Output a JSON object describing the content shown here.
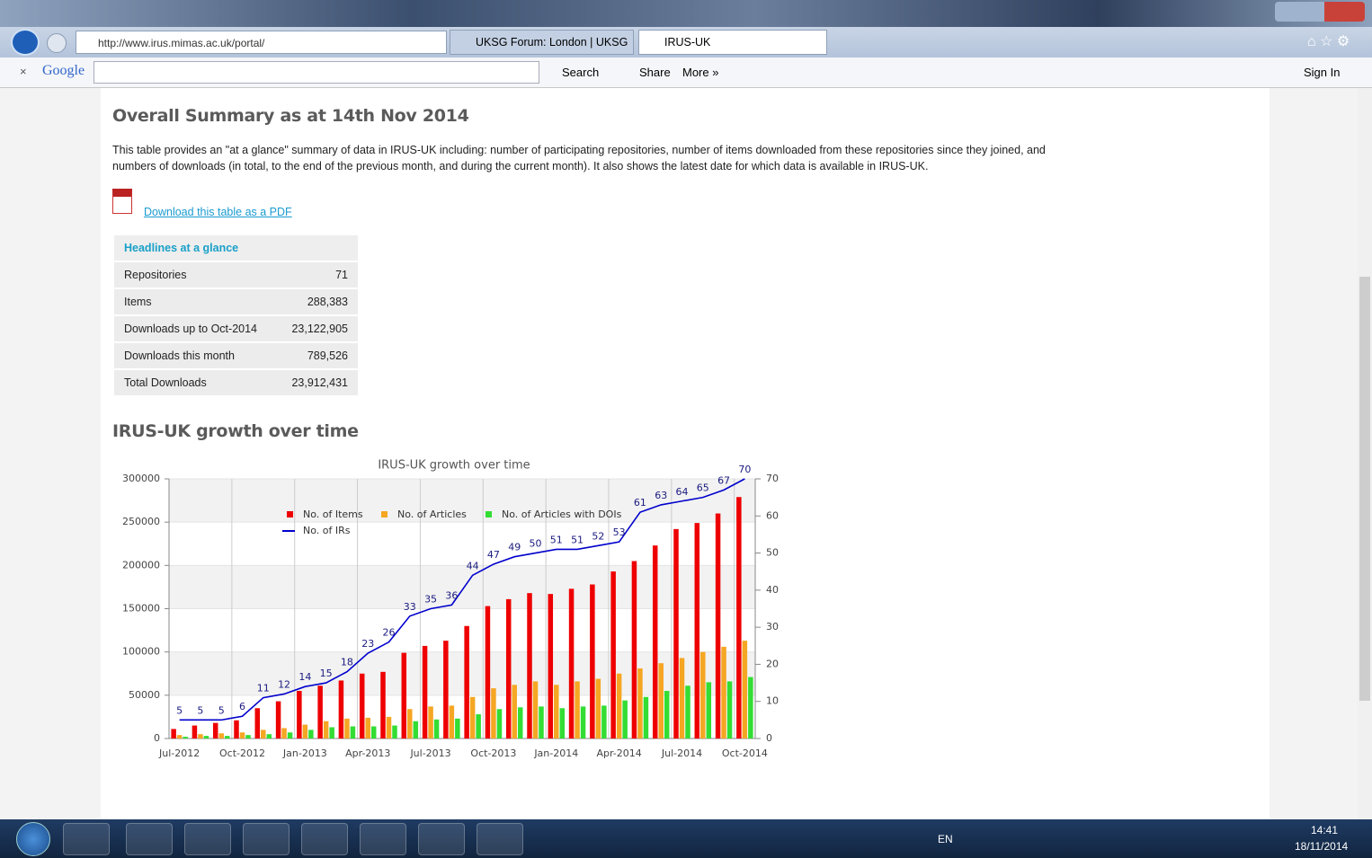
{
  "browser": {
    "address": "http://www.irus.mimas.ac.uk/portal/",
    "tabs": [
      "UKSG Forum: London | UKSG",
      "IRUS-UK"
    ],
    "toolbar": {
      "brand": "Google",
      "search": "Search",
      "share": "Share",
      "more": "More »",
      "sign_in": "Sign In"
    }
  },
  "page": {
    "heading": "Overall Summary as at 14th Nov 2014",
    "intro": [
      "This table provides an \"at a glance\" summary of data in IRUS-UK including: number of participating repositories, number of items downloaded from these repositories since they joined, and",
      "numbers of downloads (in total, to the end of the previous month, and during the current month). It also shows the latest date for which data is available in IRUS-UK."
    ],
    "pdf_link": "Download this table as a PDF",
    "table": {
      "header": "Headlines at a glance",
      "rows": [
        [
          "Repositories",
          "71"
        ],
        [
          "Items",
          "288,383"
        ],
        [
          "Downloads up to Oct-2014",
          "23,122,905"
        ],
        [
          "Downloads this month",
          "789,526"
        ],
        [
          "Total Downloads",
          "23,912,431"
        ]
      ]
    },
    "chart_heading": "IRUS-UK growth over time"
  },
  "chart_data": {
    "type": "bar",
    "title": "IRUS-UK growth over time",
    "categories": [
      "Jul-2012",
      null,
      null,
      "Oct-2012",
      null,
      null,
      "Jan-2013",
      null,
      null,
      "Apr-2013",
      null,
      null,
      "Jul-2013",
      null,
      null,
      "Oct-2013",
      null,
      null,
      "Jan-2014",
      null,
      null,
      "Apr-2014",
      null,
      null,
      "Jul-2014",
      null,
      null,
      "Oct-2014"
    ],
    "series": [
      {
        "name": "No. of Items",
        "color": "#ee0000",
        "values": [
          11000,
          15000,
          18000,
          21000,
          35000,
          43000,
          55000,
          61000,
          67000,
          75000,
          77000,
          99000,
          107000,
          113000,
          130000,
          153000,
          161000,
          168000,
          167000,
          173000,
          178000,
          193000,
          205000,
          223000,
          242000,
          249000,
          260000,
          279000
        ]
      },
      {
        "name": "No. of Articles",
        "color": "#f5a623",
        "values": [
          4000,
          5000,
          6000,
          7000,
          10000,
          12000,
          16000,
          20000,
          23000,
          24000,
          25000,
          34000,
          37000,
          38000,
          48000,
          58000,
          62000,
          66000,
          62000,
          66000,
          69000,
          75000,
          81000,
          87000,
          93000,
          100000,
          106000,
          113000
        ]
      },
      {
        "name": "No. of Articles with DOIs",
        "color": "#33dd33",
        "values": [
          2000,
          3000,
          3000,
          4000,
          5000,
          7000,
          10000,
          13000,
          14000,
          14000,
          15000,
          20000,
          22000,
          23000,
          28000,
          34000,
          36000,
          37000,
          35000,
          37000,
          38000,
          44000,
          48000,
          55000,
          61000,
          65000,
          66000,
          71000
        ]
      },
      {
        "name": "No. of IRs",
        "color": "#0000cc",
        "type": "line",
        "axis": "y2",
        "values": [
          5,
          5,
          5,
          6,
          11,
          12,
          14,
          15,
          18,
          23,
          26,
          33,
          35,
          36,
          44,
          47,
          49,
          50,
          51,
          51,
          52,
          53,
          61,
          63,
          64,
          65,
          67,
          70
        ]
      }
    ],
    "ylim": [
      0,
      300000
    ],
    "yticks": [
      0,
      50000,
      100000,
      150000,
      200000,
      250000,
      300000
    ],
    "y2lim": [
      0,
      70
    ],
    "y2ticks": [
      0,
      10,
      20,
      30,
      40,
      50,
      60,
      70
    ],
    "grid": true,
    "legend": "bottom"
  },
  "taskbar": {
    "language": "EN",
    "time": "14:41",
    "date": "18/11/2014"
  }
}
